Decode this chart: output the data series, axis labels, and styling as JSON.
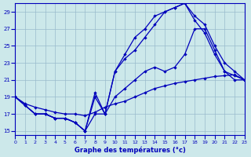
{
  "xlabel": "Graphe des températures (°c)",
  "background_color": "#cce8ea",
  "line_color": "#0000bb",
  "grid_color": "#99bbcc",
  "xlim": [
    0,
    23
  ],
  "ylim": [
    14.5,
    30
  ],
  "xticks": [
    0,
    1,
    2,
    3,
    4,
    5,
    6,
    7,
    8,
    9,
    10,
    11,
    12,
    13,
    14,
    15,
    16,
    17,
    18,
    19,
    20,
    21,
    22,
    23
  ],
  "yticks": [
    15,
    17,
    19,
    21,
    23,
    25,
    27,
    29
  ],
  "series": [
    {
      "x": [
        0,
        1,
        2,
        3,
        4,
        5,
        6,
        7,
        8,
        9,
        10,
        11,
        12,
        13,
        14,
        15,
        16,
        17,
        18,
        19,
        20,
        21,
        22,
        23
      ],
      "y": [
        19,
        18.2,
        17.8,
        17.5,
        17.2,
        17.0,
        17.0,
        16.8,
        17.2,
        17.8,
        18.2,
        18.5,
        19.0,
        19.5,
        20.0,
        20.3,
        20.6,
        20.8,
        21.0,
        21.2,
        21.4,
        21.5,
        21.6,
        21.0
      ]
    },
    {
      "x": [
        0,
        1,
        2,
        3,
        4,
        5,
        6,
        7,
        8,
        9,
        10,
        11,
        12,
        13,
        14,
        15,
        16,
        17,
        18,
        19,
        20,
        21,
        22,
        23
      ],
      "y": [
        19,
        18,
        17,
        17,
        16.5,
        16.5,
        16,
        15,
        17,
        17,
        19,
        20,
        21,
        22,
        22.5,
        22,
        22.5,
        24,
        27,
        27,
        24.5,
        22,
        21,
        21
      ]
    },
    {
      "x": [
        0,
        1,
        2,
        3,
        4,
        5,
        6,
        7,
        8,
        9,
        10,
        11,
        12,
        13,
        14,
        15,
        16,
        17,
        18,
        19,
        20,
        21,
        22,
        23
      ],
      "y": [
        19,
        18,
        17,
        17,
        16.5,
        16.5,
        16,
        15,
        19.5,
        17,
        22,
        23.5,
        24.5,
        26,
        27.5,
        29,
        29.5,
        30,
        28,
        26.5,
        24,
        22,
        21.5,
        21
      ]
    },
    {
      "x": [
        0,
        2,
        3,
        4,
        5,
        6,
        7,
        8,
        9,
        10,
        11,
        12,
        13,
        14,
        15,
        16,
        17,
        18,
        19,
        20,
        21,
        22,
        23
      ],
      "y": [
        19,
        17,
        17,
        16.5,
        16.5,
        16,
        15,
        19,
        17,
        22,
        24,
        26,
        27,
        28.5,
        29,
        29.5,
        30,
        28.5,
        27.5,
        25,
        23,
        22,
        21
      ]
    }
  ]
}
